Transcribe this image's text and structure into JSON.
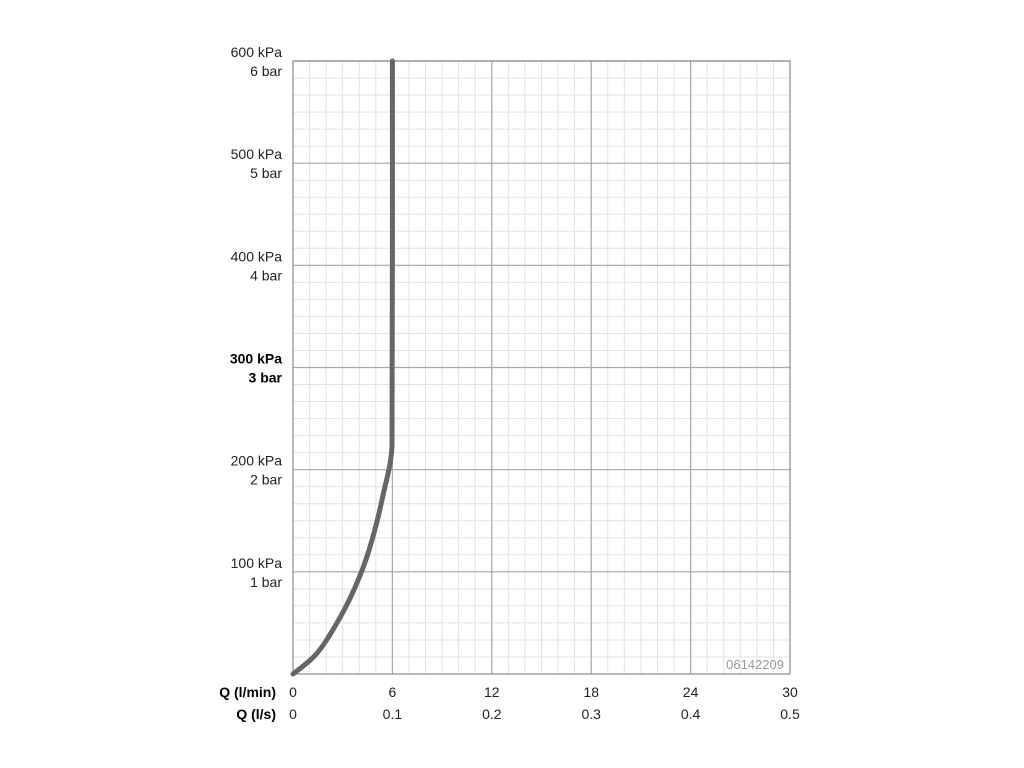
{
  "chart_data": {
    "type": "line",
    "xlabel_primary": "Q (l/min)",
    "xlabel_secondary": "Q (l/s)",
    "x_ticks_primary": [
      "0",
      "6",
      "12",
      "18",
      "24",
      "30"
    ],
    "x_ticks_secondary": [
      "0",
      "0.1",
      "0.2",
      "0.3",
      "0.4",
      "0.5"
    ],
    "xlim": [
      0,
      30
    ],
    "ylim": [
      0,
      600
    ],
    "y_ticks": [
      {
        "value": 600,
        "kpa": "600 kPa",
        "bar": "6 bar",
        "bold": false
      },
      {
        "value": 500,
        "kpa": "500 kPa",
        "bar": "5 bar",
        "bold": false
      },
      {
        "value": 400,
        "kpa": "400 kPa",
        "bar": "4 bar",
        "bold": false
      },
      {
        "value": 300,
        "kpa": "300 kPa",
        "bar": "3 bar",
        "bold": true
      },
      {
        "value": 200,
        "kpa": "200 kPa",
        "bar": "2 bar",
        "bold": false
      },
      {
        "value": 100,
        "kpa": "100 kPa",
        "bar": "1 bar",
        "bold": false
      }
    ],
    "grid": true,
    "series": [
      {
        "color": "#666666",
        "x": [
          0,
          0.5,
          1.5,
          2.5,
          3.5,
          4.4,
          5.1,
          5.5,
          5.8,
          5.95,
          6.0,
          6.0
        ],
        "y": [
          0,
          6,
          20,
          45,
          75,
          110,
          150,
          180,
          200,
          215,
          230,
          600
        ]
      }
    ],
    "annotation": "06142209"
  }
}
